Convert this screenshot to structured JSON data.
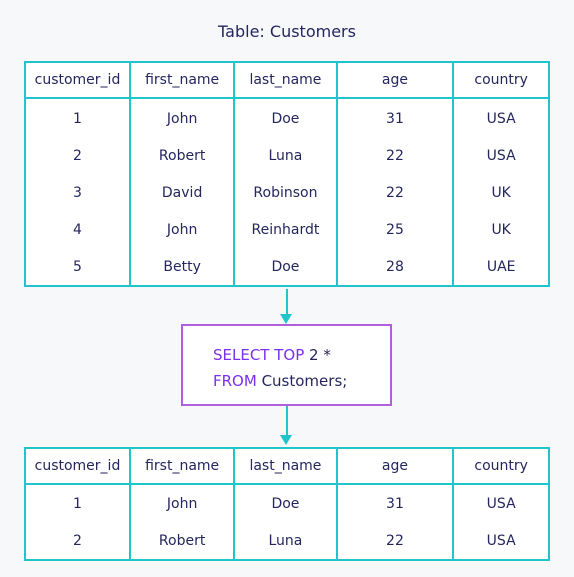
{
  "title": "Table: Customers",
  "source_table": {
    "columns": [
      "customer_id",
      "first_name",
      "last_name",
      "age",
      "country"
    ],
    "rows": [
      [
        "1",
        "John",
        "Doe",
        "31",
        "USA"
      ],
      [
        "2",
        "Robert",
        "Luna",
        "22",
        "USA"
      ],
      [
        "3",
        "David",
        "Robinson",
        "22",
        "UK"
      ],
      [
        "4",
        "John",
        "Reinhardt",
        "25",
        "UK"
      ],
      [
        "5",
        "Betty",
        "Doe",
        "28",
        "UAE"
      ]
    ]
  },
  "query": {
    "line1_keyword": "SELECT TOP",
    "line1_rest": " 2 *",
    "line2_keyword": "FROM",
    "line2_rest": " Customers;"
  },
  "result_table": {
    "columns": [
      "customer_id",
      "first_name",
      "last_name",
      "age",
      "country"
    ],
    "rows": [
      [
        "1",
        "John",
        "Doe",
        "31",
        "USA"
      ],
      [
        "2",
        "Robert",
        "Luna",
        "22",
        "USA"
      ]
    ]
  },
  "colors": {
    "table_border": "#20c4cb",
    "query_border": "#b25fdc",
    "keyword": "#7b2ff0",
    "text": "#25265e"
  }
}
